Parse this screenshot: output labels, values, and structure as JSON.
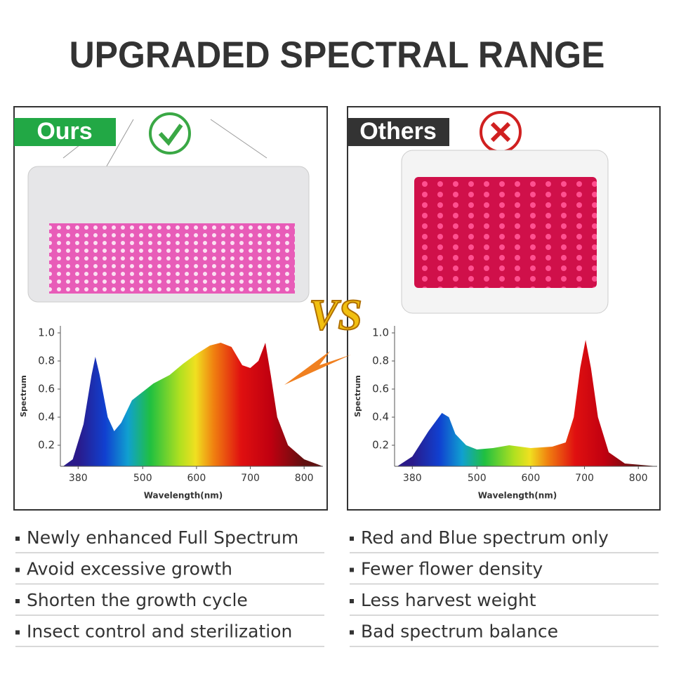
{
  "title": "UPGRADED SPECTRAL RANGE",
  "vs": "VS",
  "panels": [
    {
      "label": "Ours",
      "chart": {
        "type": "area",
        "y_label": "Spectrum",
        "x_label": "Wavelength(nm)",
        "xlim": [
          347,
          835
        ],
        "ylim": [
          0.05,
          1.05
        ],
        "xticks": [
          380,
          500,
          600,
          700,
          800
        ],
        "yticks": [
          0.2,
          0.4,
          0.6,
          0.8,
          {
            "value": 1,
            "label": "1.0"
          }
        ],
        "x": [
          352,
          370,
          390,
          405,
          412,
          420,
          435,
          447,
          460,
          480,
          500,
          520,
          550,
          575,
          600,
          625,
          645,
          665,
          685,
          700,
          715,
          728,
          738,
          750,
          770,
          800,
          835
        ],
        "values": [
          0.05,
          0.1,
          0.35,
          0.7,
          0.83,
          0.7,
          0.4,
          0.3,
          0.36,
          0.52,
          0.58,
          0.64,
          0.7,
          0.78,
          0.85,
          0.91,
          0.93,
          0.9,
          0.77,
          0.75,
          0.8,
          0.93,
          0.7,
          0.4,
          0.2,
          0.1,
          0.05
        ]
      },
      "bullets": [
        "Newly enhanced Full Spectrum",
        "Avoid excessive growth",
        "Shorten the growth cycle",
        "Insect control and sterilization"
      ]
    },
    {
      "label": "Others",
      "chart": {
        "type": "area",
        "y_label": "Spectrum",
        "x_label": "Wavelength(nm)",
        "xlim": [
          347,
          835
        ],
        "ylim": [
          0.05,
          1.05
        ],
        "xticks": [
          380,
          500,
          600,
          700,
          800
        ],
        "yticks": [
          0.2,
          0.4,
          0.6,
          0.8,
          {
            "value": 1,
            "label": "1.0"
          }
        ],
        "x": [
          352,
          380,
          410,
          435,
          448,
          460,
          480,
          500,
          530,
          560,
          600,
          640,
          665,
          680,
          692,
          702,
          712,
          725,
          745,
          775,
          835
        ],
        "values": [
          0.05,
          0.12,
          0.3,
          0.43,
          0.4,
          0.28,
          0.2,
          0.17,
          0.18,
          0.2,
          0.18,
          0.19,
          0.22,
          0.4,
          0.75,
          0.95,
          0.75,
          0.4,
          0.15,
          0.07,
          0.05
        ]
      },
      "bullets": [
        "Red and Blue spectrum only",
        "Fewer flower density",
        "Less harvest weight",
        "Bad spectrum balance"
      ]
    }
  ]
}
